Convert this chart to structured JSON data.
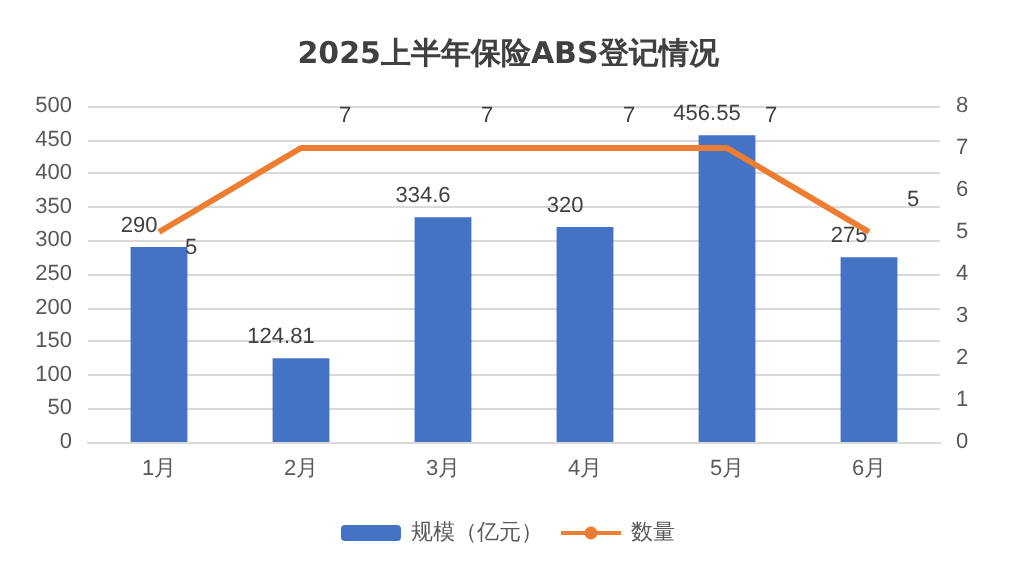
{
  "chart_data": {
    "type": "bar",
    "title": "2025上半年保险ABS登记情况",
    "categories": [
      "1月",
      "2月",
      "3月",
      "4月",
      "5月",
      "6月"
    ],
    "series": [
      {
        "name": "规模（亿元）",
        "color": "#4472c4",
        "values": [
          290,
          124.81,
          334.6,
          320,
          456.55,
          275
        ]
      },
      {
        "name": "数量",
        "type": "line",
        "axis": "y2",
        "color": "#ed7d31",
        "values": [
          5,
          7,
          7,
          7,
          7,
          5
        ]
      }
    ],
    "ylim": [
      0,
      500
    ],
    "yticks": [
      0,
      50,
      100,
      150,
      200,
      250,
      300,
      350,
      400,
      450,
      500
    ],
    "y2lim": [
      0,
      8
    ],
    "y2ticks": [
      0,
      1,
      2,
      3,
      4,
      5,
      6,
      7,
      8
    ],
    "grid": "y",
    "legend": "bottom",
    "data_labels": true,
    "marker": "none"
  }
}
